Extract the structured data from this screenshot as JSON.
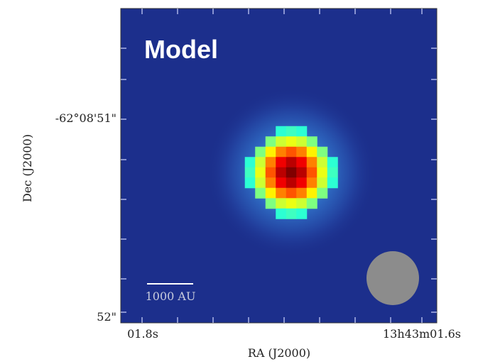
{
  "panel_label": "Model",
  "y_axis": {
    "label": "Dec (J2000)",
    "ticks": [
      "-62°08'51\"",
      "52\""
    ]
  },
  "x_axis": {
    "label": "RA (J2000)",
    "ticks": [
      "01.8s",
      "13h43m01.6s"
    ]
  },
  "scale_bar": "1000 AU"
}
